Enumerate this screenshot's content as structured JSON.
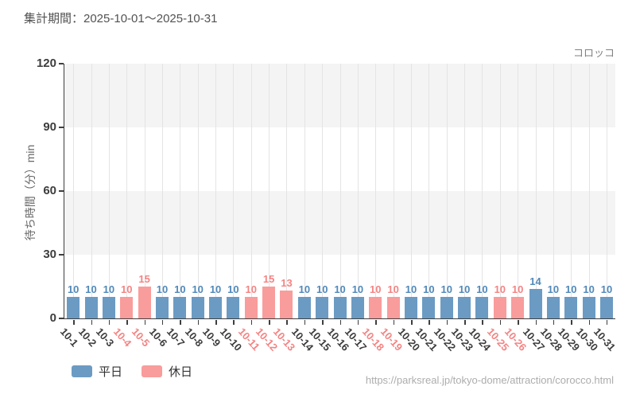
{
  "header": {
    "title": "集計期間：2025-10-01～2025-10-31"
  },
  "chart_data": {
    "type": "bar",
    "title": "コロッコ",
    "xlabel": "",
    "ylabel": "待ち時間（分）min",
    "ylim": [
      0,
      120
    ],
    "yticks": [
      0,
      30,
      60,
      90,
      120
    ],
    "grid": true,
    "legend_position": "bottom-left",
    "categories": [
      "10-1",
      "10-2",
      "10-3",
      "10-4",
      "10-5",
      "10-6",
      "10-7",
      "10-8",
      "10-9",
      "10-10",
      "10-11",
      "10-12",
      "10-13",
      "10-14",
      "10-15",
      "10-16",
      "10-17",
      "10-18",
      "10-19",
      "10-20",
      "10-21",
      "10-22",
      "10-23",
      "10-24",
      "10-25",
      "10-26",
      "10-27",
      "10-28",
      "10-29",
      "10-30",
      "10-31"
    ],
    "values": [
      10,
      10,
      10,
      10,
      15,
      10,
      10,
      10,
      10,
      10,
      10,
      15,
      13,
      10,
      10,
      10,
      10,
      10,
      10,
      10,
      10,
      10,
      10,
      10,
      10,
      10,
      14,
      10,
      10,
      10,
      10
    ],
    "day_types": [
      "weekday",
      "weekday",
      "weekday",
      "holiday",
      "holiday",
      "weekday",
      "weekday",
      "weekday",
      "weekday",
      "weekday",
      "holiday",
      "holiday",
      "holiday",
      "weekday",
      "weekday",
      "weekday",
      "weekday",
      "holiday",
      "holiday",
      "weekday",
      "weekday",
      "weekday",
      "weekday",
      "weekday",
      "holiday",
      "holiday",
      "weekday",
      "weekday",
      "weekday",
      "weekday",
      "weekday"
    ],
    "legend": [
      {
        "key": "weekday",
        "label": "平日",
        "color": "#6b9bc3"
      },
      {
        "key": "holiday",
        "label": "休日",
        "color": "#f99c9c"
      }
    ],
    "colors": {
      "weekday_bar": "#6b9bc3",
      "holiday_bar": "#f99c9c",
      "weekday_value_text": "#5189ba",
      "holiday_value_text": "#f48484",
      "weekday_xlabel_text": "#3d3d3d",
      "holiday_xlabel_text": "#f48484",
      "axis": "#3f3f3f",
      "gridline": "#e4e4e4",
      "band_gray": "#f4f4f4",
      "band_white": "#ffffff"
    }
  },
  "footer": {
    "url": "https://parksreal.jp/tokyo-dome/attraction/corocco.html"
  }
}
